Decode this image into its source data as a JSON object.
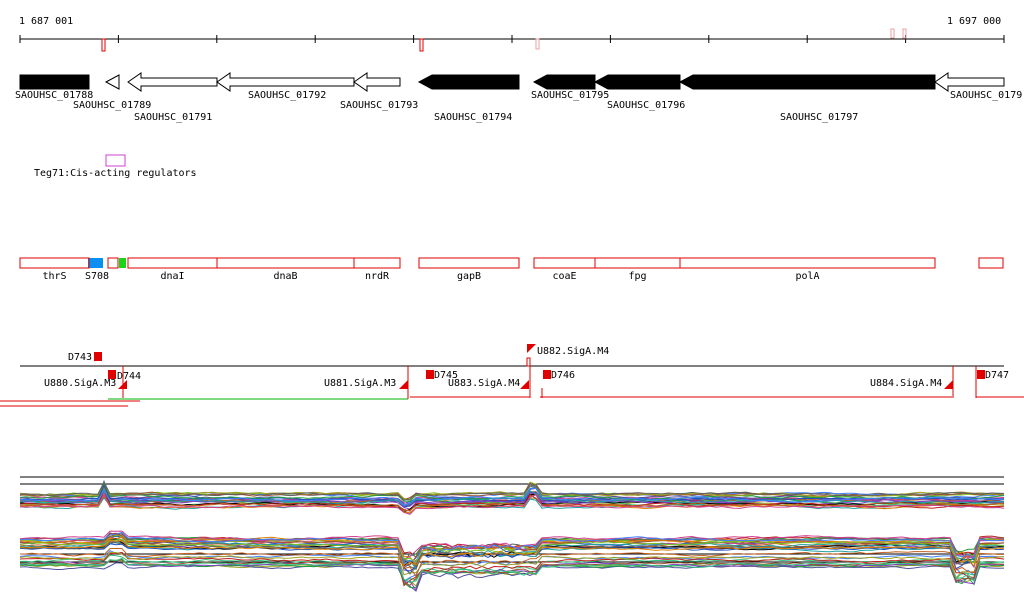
{
  "ruler": {
    "start_label": "1 687 001",
    "end_label": "1 697 000",
    "start": 1687001,
    "end": 1697000
  },
  "colors": {
    "gene_dark": "#000000",
    "gene_outline": "#000000",
    "feature_box": "#e00000",
    "utr_line": "#e00000",
    "green_line": "#00b000",
    "blue_block": "#0b8ff0",
    "green_block": "#19d419",
    "magenta": "#d040d0",
    "pink_mark": "#e8a0a0"
  },
  "genes": [
    {
      "id": "SAOUHSC_01788",
      "label": "SAOUHSC_01788",
      "start": 1687001,
      "end": 1687700,
      "strand": "+",
      "filled": true
    },
    {
      "id": "SAOUHSC_01789",
      "label": "SAOUHSC_01789",
      "start": 1687870,
      "end": 1688010,
      "strand": "-",
      "filled": false
    },
    {
      "id": "SAOUHSC_01791",
      "label": "SAOUHSC_01791",
      "start": 1688100,
      "end": 1689000,
      "strand": "-",
      "filled": false
    },
    {
      "id": "SAOUHSC_01792",
      "label": "SAOUHSC_01792",
      "start": 1689000,
      "end": 1690400,
      "strand": "-",
      "filled": false
    },
    {
      "id": "SAOUHSC_01793",
      "label": "SAOUHSC_01793",
      "start": 1690400,
      "end": 1690860,
      "strand": "-",
      "filled": false
    },
    {
      "id": "SAOUHSC_01794",
      "label": "SAOUHSC_01794",
      "start": 1691060,
      "end": 1692070,
      "strand": "-",
      "filled": true
    },
    {
      "id": "SAOUHSC_01795",
      "label": "SAOUHSC_01795",
      "start": 1692220,
      "end": 1692840,
      "strand": "-",
      "filled": true
    },
    {
      "id": "SAOUHSC_01796",
      "label": "SAOUHSC_01796",
      "start": 1692840,
      "end": 1693710,
      "strand": "-",
      "filled": true
    },
    {
      "id": "SAOUHSC_01797",
      "label": "SAOUHSC_01797",
      "start": 1693710,
      "end": 1696300,
      "strand": "-",
      "filled": true
    },
    {
      "id": "SAOUHSC_01798",
      "label": "SAOUHSC_0179",
      "start": 1696300,
      "end": 1697000,
      "strand": "-",
      "filled": false
    }
  ],
  "regulator": {
    "label": "Teg71:Cis-acting regulators"
  },
  "features": [
    {
      "label": "thrS",
      "start": 1687001,
      "end": 1687700
    },
    {
      "label": "S708",
      "start": 1687700,
      "end": 1687860
    },
    {
      "label": "dnaI",
      "start": 1688100,
      "end": 1689000
    },
    {
      "label": "dnaB",
      "start": 1689000,
      "end": 1690400
    },
    {
      "label": "nrdR",
      "start": 1690400,
      "end": 1690860
    },
    {
      "label": "gapB",
      "start": 1691060,
      "end": 1692070
    },
    {
      "label": "coaE",
      "start": 1692220,
      "end": 1692840
    },
    {
      "label": "fpg",
      "start": 1692840,
      "end": 1693710
    },
    {
      "label": "polA",
      "start": 1693710,
      "end": 1696300
    }
  ],
  "tss": [
    {
      "label": "D743"
    },
    {
      "label": "D744"
    },
    {
      "label": "U880.SigA.M3"
    },
    {
      "label": "U881.SigA.M3"
    },
    {
      "label": "D745"
    },
    {
      "label": "U882.SigA.M4"
    },
    {
      "label": "U883.SigA.M4"
    },
    {
      "label": "D746"
    },
    {
      "label": "U884.SigA.M4"
    },
    {
      "label": "D747"
    }
  ]
}
